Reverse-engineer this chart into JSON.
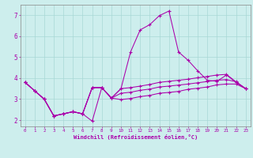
{
  "xlabel": "Windchill (Refroidissement éolien,°C)",
  "xlim": [
    -0.5,
    23.5
  ],
  "ylim": [
    1.7,
    7.5
  ],
  "yticks": [
    2,
    3,
    4,
    5,
    6,
    7
  ],
  "xticks": [
    0,
    1,
    2,
    3,
    4,
    5,
    6,
    7,
    8,
    9,
    10,
    11,
    12,
    13,
    14,
    15,
    16,
    17,
    18,
    19,
    20,
    21,
    22,
    23
  ],
  "bg_color": "#cdeeed",
  "grid_color": "#a8d8d5",
  "line_color": "#aa00aa",
  "line1": [
    3.8,
    3.4,
    3.0,
    2.2,
    2.3,
    2.4,
    2.3,
    1.95,
    3.55,
    3.05,
    3.5,
    5.25,
    6.3,
    6.55,
    6.98,
    7.2,
    5.25,
    4.85,
    4.35,
    3.9,
    3.85,
    4.15,
    3.8,
    3.5
  ],
  "line2": [
    3.8,
    3.4,
    3.0,
    2.2,
    2.3,
    2.4,
    2.3,
    3.55,
    3.55,
    3.05,
    3.5,
    3.55,
    3.62,
    3.7,
    3.8,
    3.85,
    3.9,
    3.95,
    4.02,
    4.08,
    4.15,
    4.18,
    3.82,
    3.5
  ],
  "line3": [
    3.8,
    3.4,
    3.0,
    2.2,
    2.3,
    2.4,
    2.3,
    3.55,
    3.55,
    3.05,
    3.28,
    3.33,
    3.42,
    3.48,
    3.58,
    3.62,
    3.67,
    3.72,
    3.78,
    3.84,
    3.9,
    3.93,
    3.83,
    3.5
  ],
  "line4": [
    3.8,
    3.4,
    3.0,
    2.2,
    2.3,
    2.4,
    2.3,
    3.55,
    3.55,
    3.05,
    2.98,
    3.03,
    3.12,
    3.18,
    3.28,
    3.32,
    3.37,
    3.47,
    3.52,
    3.58,
    3.68,
    3.72,
    3.72,
    3.5
  ]
}
